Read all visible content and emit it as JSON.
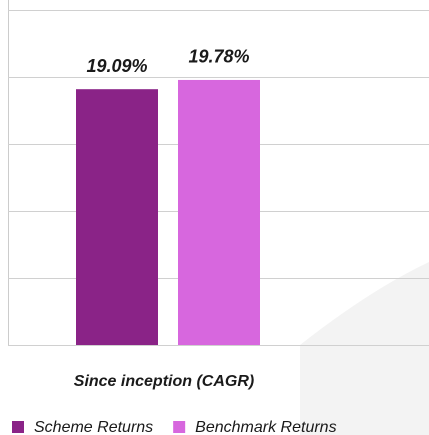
{
  "chart_data": {
    "type": "bar",
    "categories": [
      "Since inception (CAGR)"
    ],
    "series": [
      {
        "name": "Scheme Returns",
        "color": "#8a2387",
        "values": [
          19.09
        ],
        "value_labels": [
          "19.09%"
        ]
      },
      {
        "name": "Benchmark Returns",
        "color": "#d767de",
        "values": [
          19.78
        ],
        "value_labels": [
          "19.78%"
        ]
      }
    ],
    "ylim": [
      0,
      25
    ],
    "yticks": [
      0,
      5,
      10,
      15,
      20,
      25
    ],
    "grid": true
  }
}
